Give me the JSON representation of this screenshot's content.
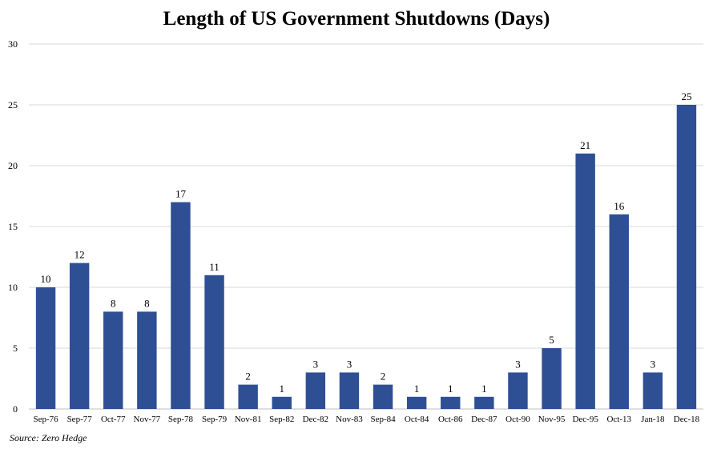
{
  "chart_data": {
    "type": "bar",
    "title": "Length of  US Government Shutdowns (Days)",
    "source": "Source: Zero Hedge",
    "xlabel": "",
    "ylabel": "",
    "ylim": [
      0,
      30
    ],
    "yticks": [
      0,
      5,
      10,
      15,
      20,
      25,
      30
    ],
    "grid": true,
    "bar_color": "#2E4F93",
    "categories": [
      "Sep-76",
      "Sep-77",
      "Oct-77",
      "Nov-77",
      "Sep-78",
      "Sep-79",
      "Nov-81",
      "Sep-82",
      "Dec-82",
      "Nov-83",
      "Sep-84",
      "Oct-84",
      "Oct-86",
      "Dec-87",
      "Oct-90",
      "Nov-95",
      "Dec-95",
      "Oct-13",
      "Jan-18",
      "Dec-18"
    ],
    "values": [
      10,
      12,
      8,
      8,
      17,
      11,
      2,
      1,
      3,
      3,
      2,
      1,
      1,
      1,
      3,
      5,
      21,
      16,
      3,
      25
    ]
  }
}
